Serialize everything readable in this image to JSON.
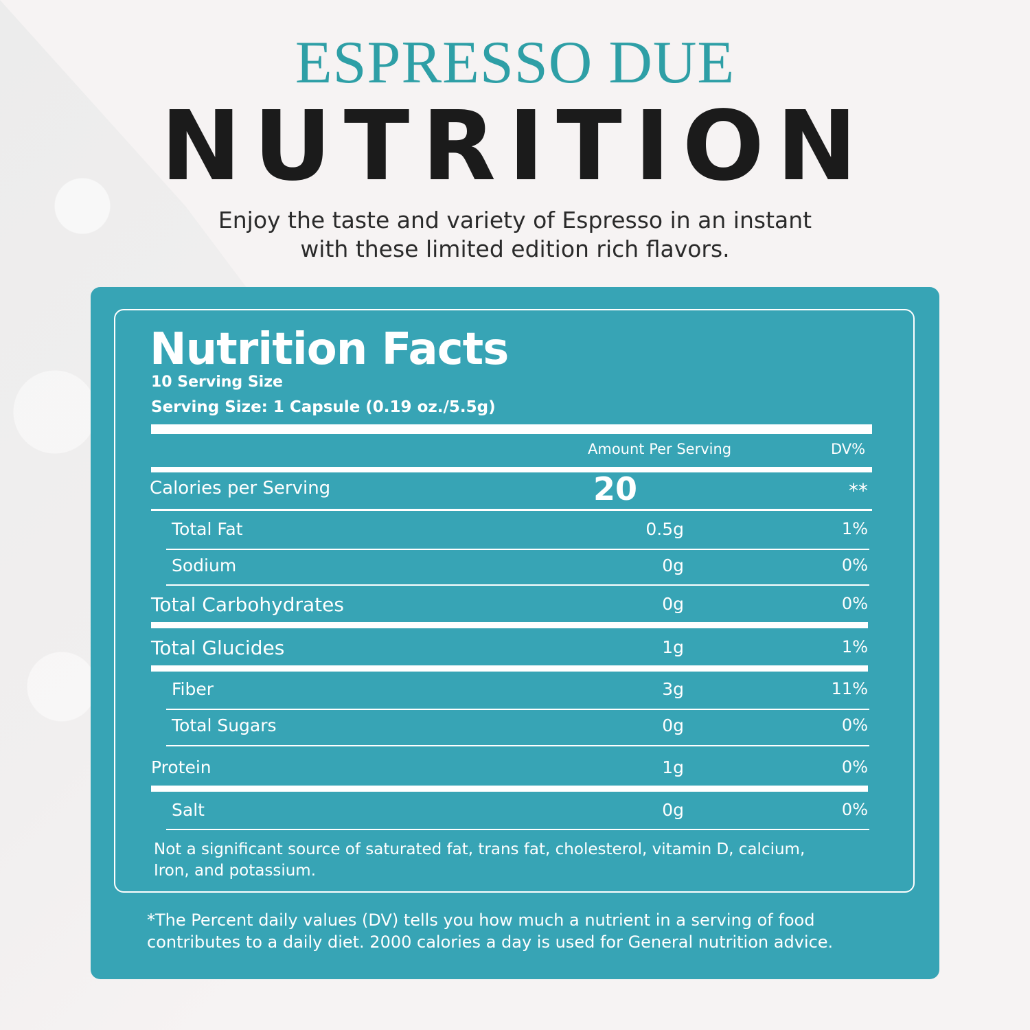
{
  "header": {
    "brand": "ESPRESSO DUE",
    "headline": "NUTRITION",
    "tagline_line1": "Enjoy the taste and variety of Espresso in an instant",
    "tagline_line2": "with these limited edition rich flavors."
  },
  "label": {
    "title": "Nutrition Facts",
    "servings": "10 Serving Size",
    "serving_size": "Serving Size: 1 Capsule  (0.19 oz./5.5g)",
    "col_amount": "Amount Per Serving",
    "col_dv": "DV%",
    "calories": {
      "label": "Calories per Serving",
      "amount": "20",
      "dv": "**"
    },
    "rows": [
      {
        "label": "Total Fat",
        "amount": "0.5g",
        "dv": "1%"
      },
      {
        "label": "Sodium",
        "amount": "0g",
        "dv": "0%"
      },
      {
        "label": "Total Carbohydrates",
        "amount": "0g",
        "dv": "0%"
      },
      {
        "label": "Total Glucides",
        "amount": "1g",
        "dv": "1%"
      },
      {
        "label": "Fiber",
        "amount": "3g",
        "dv": "11%"
      },
      {
        "label": "Total Sugars",
        "amount": "0g",
        "dv": "0%"
      },
      {
        "label": "Protein",
        "amount": "1g",
        "dv": "0%"
      },
      {
        "label": "Salt",
        "amount": "0g",
        "dv": "0%"
      }
    ],
    "note_line1": "Not a significant source of saturated fat, trans fat, cholesterol, vitamin D, calcium,",
    "note_line2": "Iron, and potassium."
  },
  "footnote": {
    "line1": "*The Percent daily values (DV) tells you how much a nutrient in a serving of food",
    "line2": "contributes to a daily diet. 2000 calories a day is used for General nutrition advice."
  },
  "colors": {
    "accent": "#37a4b5",
    "brand": "#2e9fa6",
    "headline": "#1b1b1b"
  }
}
